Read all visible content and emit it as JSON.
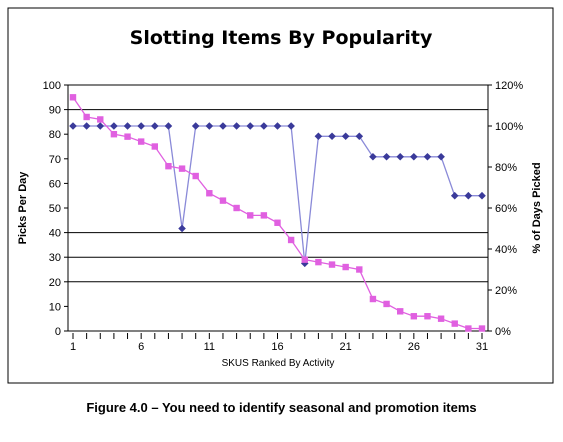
{
  "caption": "Figure 4.0 – You need to identify seasonal and promotion items",
  "chart_data": {
    "type": "line",
    "title": "Slotting Items By Popularity",
    "xlabel": "SKUS Ranked By Activity",
    "ylabel": "Picks Per Day",
    "y2label": "% of Days Picked",
    "ylim": [
      0,
      100
    ],
    "y2lim": [
      0,
      120
    ],
    "yticks": [
      0,
      10,
      20,
      30,
      40,
      50,
      60,
      70,
      80,
      90,
      100
    ],
    "y2ticks": [
      "0%",
      "20%",
      "40%",
      "60%",
      "80%",
      "100%",
      "120%"
    ],
    "xticks": [
      1,
      6,
      11,
      16,
      21,
      26,
      31
    ],
    "reference_lines": [
      90,
      40,
      30,
      20
    ],
    "series": [
      {
        "axis": "right",
        "color": "#3a3a9a",
        "line_color": "#8a8ad8",
        "marker": "diamond",
        "values": [
          100,
          100,
          100,
          100,
          100,
          100,
          100,
          100,
          50,
          100,
          100,
          100,
          100,
          100,
          100,
          100,
          100,
          33,
          95,
          95,
          95,
          95,
          85,
          85,
          85,
          85,
          85,
          85,
          66,
          66,
          66
        ]
      },
      {
        "axis": "left",
        "color": "#e060e0",
        "line_color": "#e060e0",
        "marker": "square",
        "values": [
          95,
          87,
          86,
          80,
          79,
          77,
          75,
          67,
          66,
          63,
          56,
          53,
          50,
          47,
          47,
          44,
          37,
          29,
          28,
          27,
          26,
          25,
          13,
          11,
          8,
          6,
          6,
          5,
          3,
          1,
          1
        ]
      }
    ]
  }
}
